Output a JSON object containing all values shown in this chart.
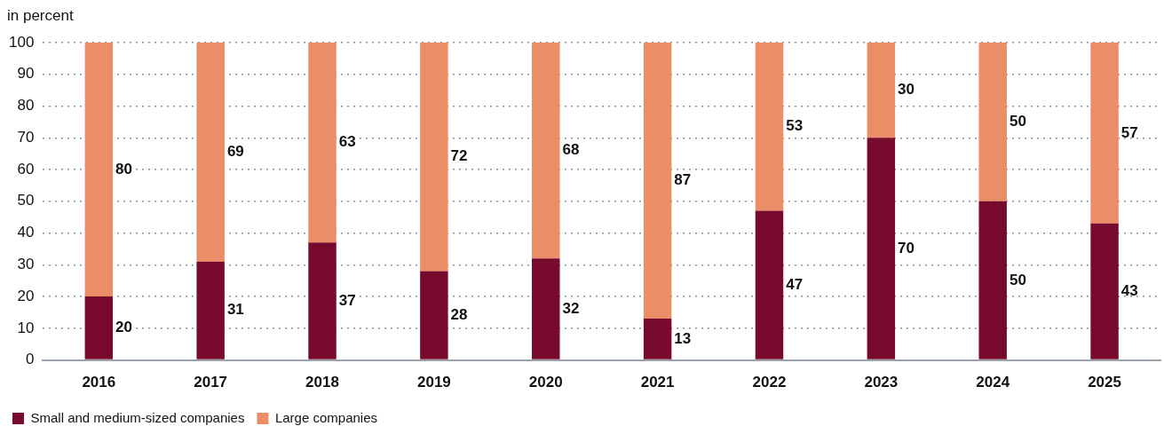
{
  "chart_data": {
    "type": "bar",
    "ylabel": "in percent",
    "categories": [
      "2016",
      "2017",
      "2018",
      "2019",
      "2020",
      "2021",
      "2022",
      "2023",
      "2024",
      "2025"
    ],
    "series": [
      {
        "name": "Small and medium-sized companies",
        "color": "#780a2d",
        "values": [
          20,
          31,
          37,
          28,
          32,
          13,
          47,
          70,
          50,
          43
        ]
      },
      {
        "name": "Large companies",
        "color": "#eb8d66",
        "values": [
          80,
          69,
          63,
          72,
          68,
          87,
          53,
          30,
          50,
          57
        ]
      }
    ],
    "stacked": true,
    "ylim": [
      0,
      100
    ],
    "yticks": [
      0,
      10,
      20,
      30,
      40,
      50,
      60,
      70,
      80,
      90,
      100
    ],
    "grid": "y",
    "legend": "bottom left",
    "data_labels": true
  }
}
